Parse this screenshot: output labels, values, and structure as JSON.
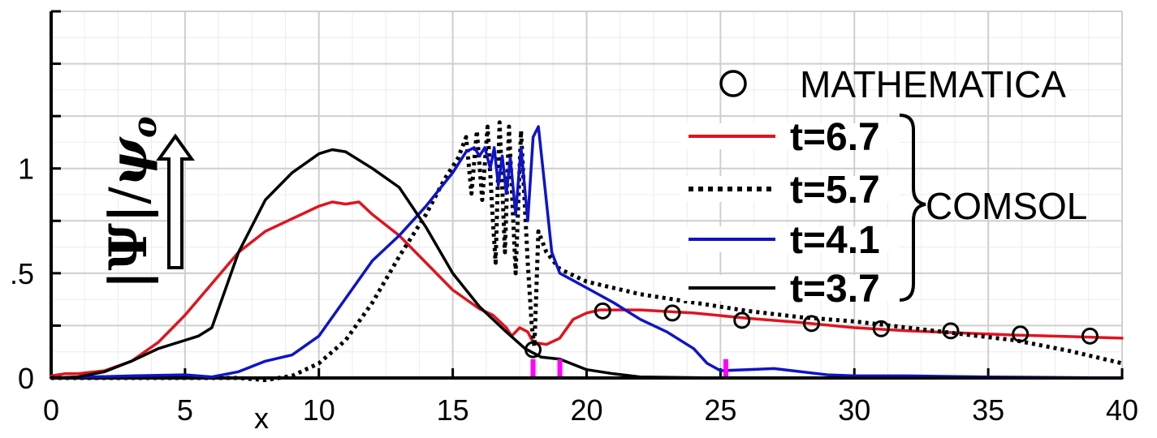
{
  "chart_data": {
    "type": "line",
    "xlabel": "x",
    "ylabel": "|Ψ|/ψo",
    "ylabel_parts": {
      "abs": "|Ψ|",
      "slash": "/",
      "psi": "ψ",
      "sub": "o"
    },
    "xlim": [
      0,
      40
    ],
    "ylim": [
      0,
      1.75
    ],
    "grid": true,
    "x_ticks": [
      0,
      5,
      10,
      15,
      20,
      25,
      30,
      35,
      40
    ],
    "x_tick_labels": [
      "0",
      "5",
      "10",
      "15",
      "20",
      "25",
      "30",
      "35",
      "40"
    ],
    "y_ticks": [
      0,
      0.5,
      1
    ],
    "y_tick_labels": [
      "0",
      ".5",
      "1"
    ],
    "legend_group_label": "COMSOL",
    "legend_placement": "top-right",
    "series": [
      {
        "name": "MATHEMATICA",
        "style": "markers",
        "color": "#000000",
        "points": [
          [
            18.0,
            0.135
          ],
          [
            20.6,
            0.32
          ],
          [
            23.2,
            0.31
          ],
          [
            25.8,
            0.275
          ],
          [
            28.4,
            0.26
          ],
          [
            31.0,
            0.235
          ],
          [
            33.6,
            0.225
          ],
          [
            36.2,
            0.21
          ],
          [
            38.8,
            0.2
          ]
        ]
      },
      {
        "name": "t=6.7",
        "style": "solid",
        "color": "#e0141e",
        "points": [
          [
            0,
            0.01
          ],
          [
            0.5,
            0.02
          ],
          [
            1,
            0.02
          ],
          [
            2,
            0.035
          ],
          [
            3,
            0.08
          ],
          [
            4,
            0.17
          ],
          [
            5,
            0.3
          ],
          [
            6,
            0.45
          ],
          [
            7,
            0.6
          ],
          [
            8,
            0.7
          ],
          [
            9,
            0.76
          ],
          [
            10,
            0.82
          ],
          [
            10.5,
            0.84
          ],
          [
            11,
            0.83
          ],
          [
            11.5,
            0.84
          ],
          [
            12,
            0.78
          ],
          [
            13,
            0.68
          ],
          [
            14,
            0.55
          ],
          [
            15,
            0.42
          ],
          [
            16,
            0.33
          ],
          [
            16.5,
            0.3
          ],
          [
            17,
            0.24
          ],
          [
            17.2,
            0.2
          ],
          [
            17.5,
            0.24
          ],
          [
            17.8,
            0.22
          ],
          [
            18.0,
            0.17
          ],
          [
            18.5,
            0.16
          ],
          [
            19,
            0.19
          ],
          [
            19.5,
            0.28
          ],
          [
            20,
            0.31
          ],
          [
            20.5,
            0.325
          ],
          [
            22,
            0.325
          ],
          [
            24,
            0.31
          ],
          [
            26,
            0.285
          ],
          [
            28,
            0.265
          ],
          [
            30,
            0.24
          ],
          [
            32,
            0.225
          ],
          [
            34,
            0.215
          ],
          [
            36,
            0.205
          ],
          [
            38,
            0.198
          ],
          [
            40,
            0.19
          ]
        ]
      },
      {
        "name": "t=5.7",
        "style": "dotted",
        "color": "#000000",
        "points": [
          [
            0,
            0.0
          ],
          [
            5,
            0.0
          ],
          [
            7,
            0.0
          ],
          [
            8,
            -0.01
          ],
          [
            9,
            0.01
          ],
          [
            10,
            0.07
          ],
          [
            11,
            0.18
          ],
          [
            12,
            0.36
          ],
          [
            13,
            0.58
          ],
          [
            14,
            0.78
          ],
          [
            14.7,
            0.95
          ],
          [
            15.2,
            1.05
          ],
          [
            15.5,
            1.15
          ],
          [
            15.7,
            0.88
          ],
          [
            15.9,
            1.18
          ],
          [
            16.1,
            0.85
          ],
          [
            16.3,
            1.2
          ],
          [
            16.5,
            0.75
          ],
          [
            16.6,
            0.55
          ],
          [
            16.75,
            1.22
          ],
          [
            16.95,
            0.6
          ],
          [
            17.1,
            1.2
          ],
          [
            17.35,
            0.5
          ],
          [
            17.55,
            1.18
          ],
          [
            17.8,
            0.55
          ],
          [
            17.95,
            0.25
          ],
          [
            18.05,
            0.15
          ],
          [
            18.2,
            0.7
          ],
          [
            18.5,
            0.6
          ],
          [
            19,
            0.52
          ],
          [
            20,
            0.46
          ],
          [
            22,
            0.4
          ],
          [
            24,
            0.36
          ],
          [
            26,
            0.32
          ],
          [
            28,
            0.29
          ],
          [
            30,
            0.27
          ],
          [
            32,
            0.24
          ],
          [
            34,
            0.21
          ],
          [
            36,
            0.18
          ],
          [
            38,
            0.13
          ],
          [
            40,
            0.07
          ]
        ]
      },
      {
        "name": "t=4.1",
        "style": "solid",
        "color": "#0f14c8",
        "points": [
          [
            0,
            0.0
          ],
          [
            3,
            0.01
          ],
          [
            5,
            0.015
          ],
          [
            6,
            0.005
          ],
          [
            7,
            0.03
          ],
          [
            8,
            0.08
          ],
          [
            9,
            0.11
          ],
          [
            10,
            0.2
          ],
          [
            11,
            0.38
          ],
          [
            12,
            0.56
          ],
          [
            13,
            0.68
          ],
          [
            14,
            0.82
          ],
          [
            15,
            0.98
          ],
          [
            15.5,
            1.08
          ],
          [
            15.8,
            1.1
          ],
          [
            16.0,
            1.06
          ],
          [
            16.2,
            1.1
          ],
          [
            16.4,
            1.0
          ],
          [
            16.55,
            1.1
          ],
          [
            16.7,
            0.92
          ],
          [
            16.85,
            1.06
          ],
          [
            17.0,
            0.88
          ],
          [
            17.15,
            1.05
          ],
          [
            17.35,
            0.78
          ],
          [
            17.55,
            1.1
          ],
          [
            17.8,
            0.75
          ],
          [
            18.0,
            1.15
          ],
          [
            18.2,
            1.2
          ],
          [
            18.45,
            0.9
          ],
          [
            18.7,
            0.6
          ],
          [
            19,
            0.5
          ],
          [
            20,
            0.43
          ],
          [
            21,
            0.36
          ],
          [
            22,
            0.28
          ],
          [
            23,
            0.22
          ],
          [
            24,
            0.14
          ],
          [
            24.5,
            0.07
          ],
          [
            25,
            0.035
          ],
          [
            26,
            0.04
          ],
          [
            27,
            0.045
          ],
          [
            28,
            0.03
          ],
          [
            29,
            0.015
          ],
          [
            30,
            0.01
          ],
          [
            32,
            0.01
          ],
          [
            35,
            0.005
          ],
          [
            40,
            0.0
          ]
        ]
      },
      {
        "name": "t=3.7",
        "style": "solid",
        "color": "#000000",
        "points": [
          [
            0,
            0.0
          ],
          [
            1,
            0.005
          ],
          [
            2,
            0.03
          ],
          [
            3,
            0.08
          ],
          [
            4,
            0.14
          ],
          [
            5,
            0.18
          ],
          [
            5.5,
            0.2
          ],
          [
            6,
            0.24
          ],
          [
            7,
            0.6
          ],
          [
            8,
            0.85
          ],
          [
            9,
            0.98
          ],
          [
            10,
            1.07
          ],
          [
            10.5,
            1.09
          ],
          [
            11,
            1.08
          ],
          [
            12,
            1.0
          ],
          [
            13,
            0.91
          ],
          [
            14,
            0.72
          ],
          [
            15,
            0.5
          ],
          [
            16,
            0.34
          ],
          [
            17,
            0.22
          ],
          [
            17.7,
            0.14
          ],
          [
            18.3,
            0.1
          ],
          [
            19,
            0.09
          ],
          [
            20,
            0.04
          ],
          [
            21,
            0.02
          ],
          [
            22,
            0.005
          ],
          [
            25,
            0.0
          ],
          [
            30,
            0.0
          ],
          [
            35,
            0.0
          ],
          [
            40,
            0.0
          ]
        ]
      }
    ],
    "markers": {
      "color": "#ff00ff",
      "x": [
        18.0,
        19.0,
        25.2
      ],
      "height": 0.09
    }
  }
}
